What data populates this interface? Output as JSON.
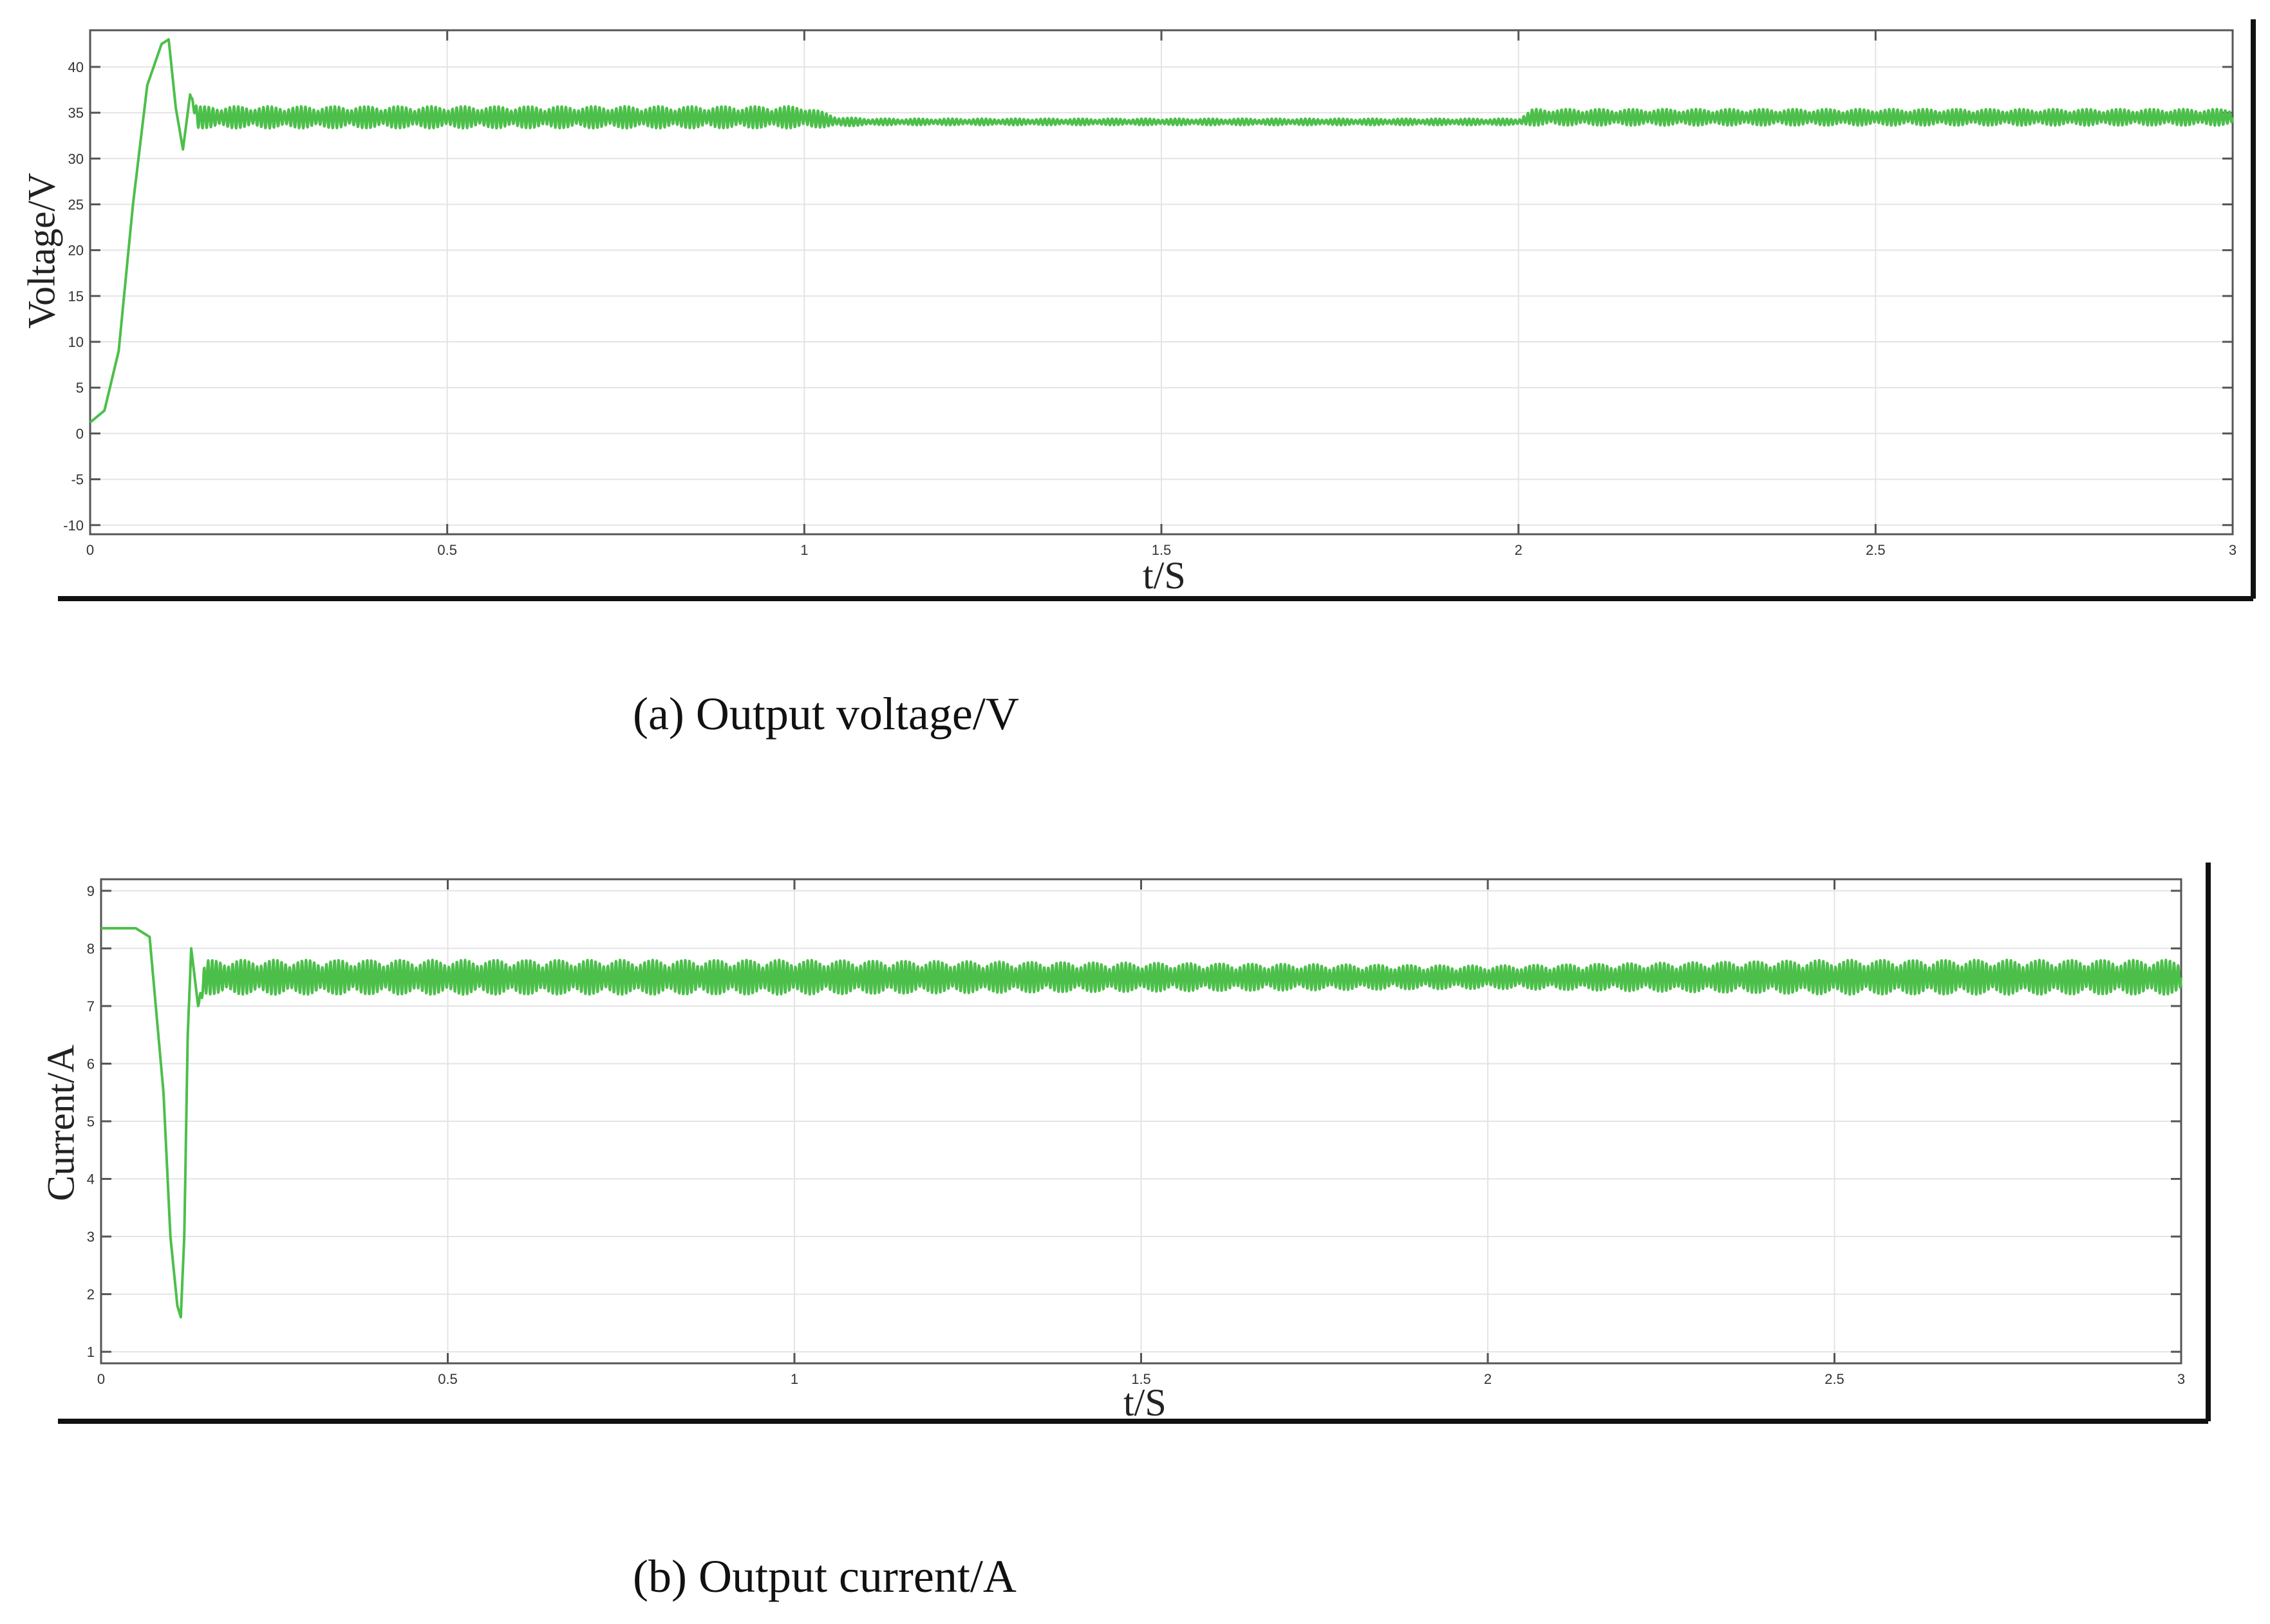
{
  "chart_data": [
    {
      "type": "line",
      "caption": "(a) Output voltage/V",
      "xlabel": "t/S",
      "ylabel": "Voltage/V",
      "xlim": [
        0,
        3
      ],
      "ylim": [
        -11,
        44
      ],
      "xticks": [
        0,
        0.5,
        1,
        1.5,
        2,
        2.5,
        3
      ],
      "xtick_labels": [
        "0",
        "0.5",
        "1",
        "1.5",
        "2",
        "2.5",
        "3"
      ],
      "yticks": [
        -10,
        -5,
        0,
        5,
        10,
        15,
        20,
        25,
        30,
        35,
        40
      ],
      "ytick_labels": [
        "-10",
        "-5",
        "0",
        "5",
        "10",
        "15",
        "20",
        "25",
        "30",
        "35",
        "40"
      ],
      "grid": true,
      "line_color": "#4cbf4a",
      "series": [
        {
          "name": "",
          "x": [
            0,
            0.02,
            0.04,
            0.06,
            0.08,
            0.1,
            0.11,
            0.12,
            0.13,
            0.14,
            0.15,
            0.2,
            0.3,
            0.4,
            0.5,
            0.6,
            0.7,
            0.8,
            0.9,
            1.0,
            1.05,
            1.1,
            1.5,
            1.9,
            2.0,
            2.02,
            2.1,
            2.5,
            3.0
          ],
          "y": [
            1.2,
            2.5,
            9,
            25,
            38,
            42.5,
            43,
            35.5,
            31,
            37,
            34.5,
            34.5,
            34.5,
            34.5,
            34.5,
            34.5,
            34.5,
            34.5,
            34.5,
            34.5,
            34,
            34,
            34,
            34,
            34,
            34.5,
            34.5,
            34.5,
            34.5
          ],
          "ripple": [
            0,
            0,
            0,
            0,
            0,
            0,
            0,
            0,
            0,
            0,
            1.2,
            1.2,
            1.2,
            1.2,
            1.2,
            1.2,
            1.2,
            1.2,
            1.2,
            1.2,
            0.5,
            0.35,
            0.35,
            0.35,
            0.35,
            0.9,
            0.9,
            0.9,
            0.9
          ]
        }
      ]
    },
    {
      "type": "line",
      "caption": "(b) Output current/A",
      "xlabel": "t/S",
      "ylabel": "Current/A",
      "xlim": [
        0,
        3
      ],
      "ylim": [
        0.8,
        9.2
      ],
      "xticks": [
        0,
        0.5,
        1,
        1.5,
        2,
        2.5,
        3
      ],
      "xtick_labels": [
        "0",
        "0.5",
        "1",
        "1.5",
        "2",
        "2.5",
        "3"
      ],
      "yticks": [
        1,
        2,
        3,
        4,
        5,
        6,
        7,
        8,
        9
      ],
      "ytick_labels": [
        "1",
        "2",
        "3",
        "4",
        "5",
        "6",
        "7",
        "8",
        "9"
      ],
      "grid": true,
      "line_color": "#4cbf4a",
      "series": [
        {
          "name": "",
          "x": [
            0,
            0.05,
            0.07,
            0.09,
            0.1,
            0.11,
            0.115,
            0.12,
            0.125,
            0.13,
            0.14,
            0.15,
            0.5,
            1.0,
            1.5,
            2.0,
            2.5,
            3.0
          ],
          "y": [
            8.35,
            8.35,
            8.2,
            5.5,
            3,
            1.8,
            1.6,
            3,
            6.5,
            8,
            7,
            7.5,
            7.5,
            7.5,
            7.5,
            7.5,
            7.5,
            7.5
          ],
          "ripple": [
            0,
            0,
            0,
            0,
            0,
            0,
            0,
            0,
            0,
            0,
            0,
            0.3,
            0.3,
            0.3,
            0.25,
            0.2,
            0.3,
            0.3
          ]
        }
      ]
    }
  ]
}
